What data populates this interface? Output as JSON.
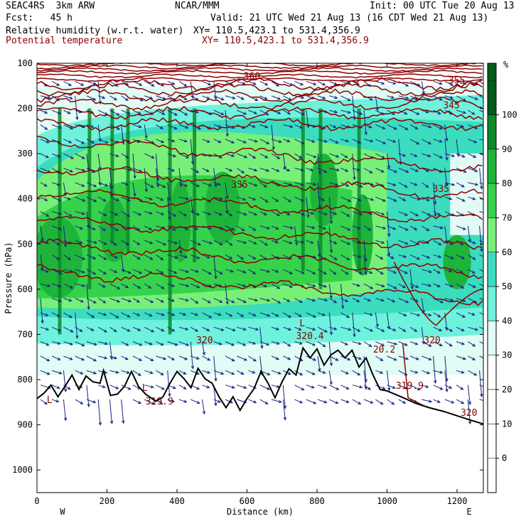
{
  "header": {
    "model": "SEAC4RS  3km ARW",
    "center": "NCAR/MMM",
    "init": "Init: 00 UTC Tue 20 Aug 13",
    "fcst": "Fcst:   45 h",
    "valid": "Valid: 21 UTC Wed 21 Aug 13 (16 CDT Wed 21 Aug 13)",
    "field1": "Relative humidity (w.r.t. water)",
    "field1_xy": "XY= 110.5,423.1 to 531.4,356.9",
    "field2": "Potential temperature",
    "field2_xy": "XY= 110.5,423.1 to 531.4,356.9"
  },
  "colors": {
    "theta_contour": "#8b0000",
    "wind_vector": "#1a237e",
    "terrain": "#000000",
    "rh_30": "#e0fcf4",
    "rh_40": "#6ef2dc",
    "rh_50": "#3cdcbf",
    "rh_60": "#78f078",
    "rh_70": "#36d24c",
    "rh_80": "#1eb43a",
    "rh_90": "#0a8a2a",
    "rh_100": "#035a1a"
  },
  "chart_data": {
    "type": "heatmap",
    "title": "",
    "xlabel": "Distance (km)",
    "ylabel": "Pressure (hPa)",
    "x_ticks": [
      0,
      200,
      400,
      600,
      800,
      1000,
      1200
    ],
    "xlim": [
      0,
      1275
    ],
    "y_ticks": [
      100,
      200,
      300,
      400,
      500,
      600,
      700,
      800,
      900,
      1000
    ],
    "ylim": [
      100,
      1050
    ],
    "x_end_labels": {
      "left": "W",
      "right": "E"
    },
    "colorbar": {
      "unit": "%",
      "levels": [
        0,
        10,
        20,
        30,
        40,
        50,
        60,
        70,
        80,
        90,
        100
      ],
      "colors": [
        "#ffffff",
        "#ffffff",
        "#ffffff",
        "#e0fcf4",
        "#6ef2dc",
        "#3cdcbf",
        "#78f078",
        "#36d24c",
        "#1eb43a",
        "#0a8a2a",
        "#035a1a"
      ]
    },
    "theta_contour_labels": [
      {
        "text": "360",
        "x": 590,
        "p": 135
      },
      {
        "text": "355",
        "x": 1175,
        "p": 145
      },
      {
        "text": "345",
        "x": 1160,
        "p": 200
      },
      {
        "text": "335",
        "x": 555,
        "p": 375
      },
      {
        "text": "335",
        "x": 1130,
        "p": 385
      },
      {
        "text": "320",
        "x": 455,
        "p": 720
      },
      {
        "text": "320",
        "x": 1105,
        "p": 720
      },
      {
        "text": "320",
        "x": 1210,
        "p": 880
      },
      {
        "text": "319.9",
        "x": 1025,
        "p": 820
      },
      {
        "text": "L",
        "x": 300,
        "p": 825
      },
      {
        "text": "319.9",
        "x": 310,
        "p": 855
      },
      {
        "text": "L",
        "x": 750,
        "p": 682
      },
      {
        "text": "320.4",
        "x": 740,
        "p": 710
      },
      {
        "text": "L",
        "x": 28,
        "p": 852
      },
      {
        "text": "20.2",
        "x": 960,
        "p": 740
      }
    ],
    "terrain_surface_p": [
      [
        0,
        842
      ],
      [
        20,
        830
      ],
      [
        40,
        812
      ],
      [
        60,
        838
      ],
      [
        80,
        815
      ],
      [
        100,
        790
      ],
      [
        120,
        822
      ],
      [
        140,
        792
      ],
      [
        160,
        805
      ],
      [
        180,
        808
      ],
      [
        190,
        780
      ],
      [
        210,
        835
      ],
      [
        230,
        832
      ],
      [
        250,
        815
      ],
      [
        270,
        782
      ],
      [
        290,
        815
      ],
      [
        310,
        832
      ],
      [
        340,
        848
      ],
      [
        360,
        838
      ],
      [
        380,
        808
      ],
      [
        400,
        782
      ],
      [
        420,
        798
      ],
      [
        440,
        818
      ],
      [
        460,
        775
      ],
      [
        480,
        798
      ],
      [
        500,
        808
      ],
      [
        520,
        838
      ],
      [
        540,
        862
      ],
      [
        560,
        838
      ],
      [
        580,
        868
      ],
      [
        600,
        842
      ],
      [
        620,
        820
      ],
      [
        640,
        782
      ],
      [
        660,
        808
      ],
      [
        680,
        840
      ],
      [
        700,
        805
      ],
      [
        720,
        776
      ],
      [
        740,
        790
      ],
      [
        760,
        730
      ],
      [
        780,
        752
      ],
      [
        800,
        732
      ],
      [
        820,
        768
      ],
      [
        840,
        745
      ],
      [
        860,
        735
      ],
      [
        880,
        752
      ],
      [
        900,
        735
      ],
      [
        920,
        772
      ],
      [
        940,
        752
      ],
      [
        960,
        790
      ],
      [
        980,
        822
      ],
      [
        1000,
        825
      ],
      [
        1040,
        838
      ],
      [
        1080,
        852
      ],
      [
        1120,
        862
      ],
      [
        1160,
        870
      ],
      [
        1200,
        880
      ],
      [
        1240,
        890
      ],
      [
        1275,
        898
      ]
    ]
  }
}
